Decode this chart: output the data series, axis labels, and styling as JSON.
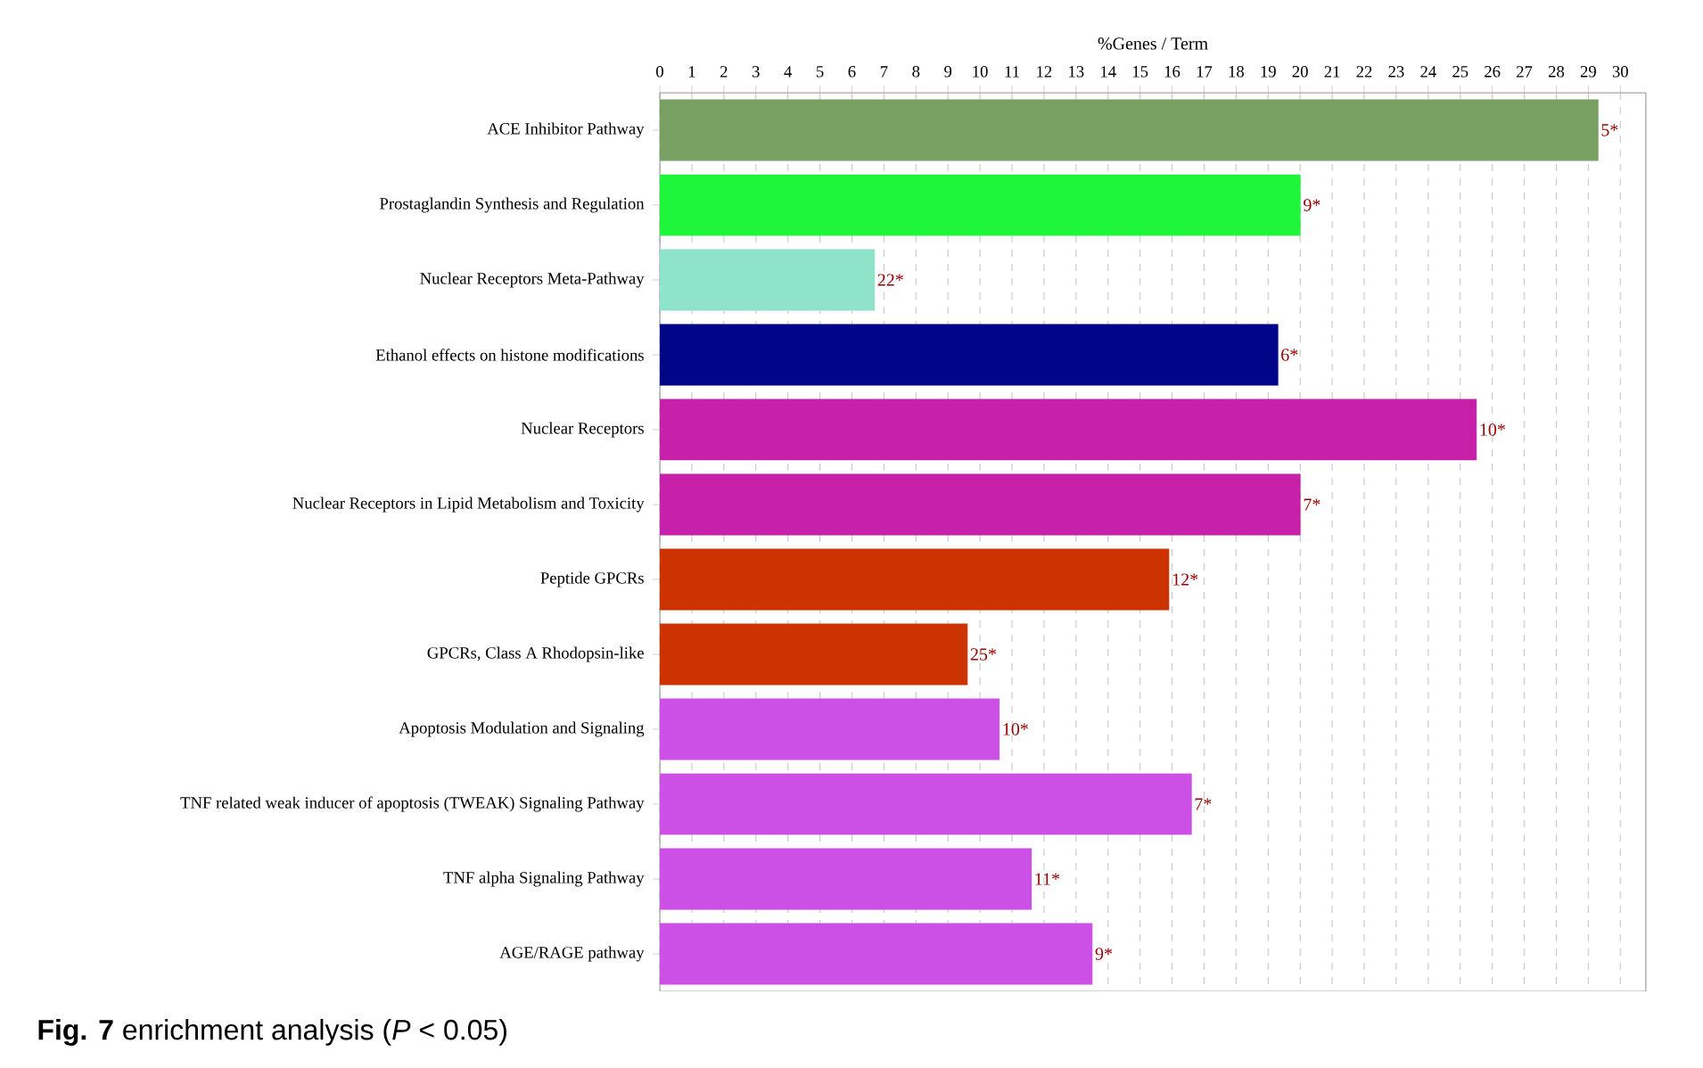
{
  "chart_data": {
    "type": "bar",
    "orientation": "horizontal",
    "xlabel": "%Genes / Term",
    "categories": [
      "ACE Inhibitor Pathway",
      "Prostaglandin Synthesis and Regulation",
      "Nuclear Receptors Meta-Pathway",
      "Ethanol effects on histone modifications",
      "Nuclear Receptors",
      "Nuclear Receptors in Lipid Metabolism and Toxicity",
      "Peptide GPCRs",
      "GPCRs, Class A Rhodopsin-like",
      "Apoptosis Modulation and Signaling",
      "TNF related weak inducer of apoptosis (TWEAK) Signaling Pathway",
      "TNF alpha Signaling Pathway",
      "AGE/RAGE pathway"
    ],
    "values": [
      29.3,
      20.0,
      6.7,
      19.3,
      25.5,
      20.0,
      15.9,
      9.6,
      10.6,
      16.6,
      11.6,
      13.5
    ],
    "colors": [
      "#77a062",
      "#1ff53b",
      "#8ee3c9",
      "#000687",
      "#c621a8",
      "#c621a8",
      "#cc3300",
      "#cc3300",
      "#cc4fe6",
      "#cc4fe6",
      "#cc4fe6",
      "#cc4fe6"
    ],
    "xlim": [
      0,
      30.8
    ],
    "xticks": [
      0,
      1,
      2,
      3,
      4,
      5,
      6,
      7,
      8,
      9,
      10,
      11,
      12,
      13,
      14,
      15,
      16,
      17,
      18,
      19,
      20,
      21,
      22,
      23,
      24,
      25,
      26,
      27,
      28,
      29,
      30
    ],
    "grid": "x",
    "annotations": [
      {
        "text": "5*",
        "x": 29.3,
        "y": "ACE Inhibitor Pathway"
      },
      {
        "text": "9*",
        "x": 20.0,
        "y": "Prostaglandin Synthesis and Regulation"
      },
      {
        "text": "22*",
        "x": 6.7,
        "y": "Nuclear Receptors Meta-Pathway"
      },
      {
        "text": "6*",
        "x": 19.3,
        "y": "Ethanol effects on histone modifications"
      },
      {
        "text": "10*",
        "x": 25.5,
        "y": "Nuclear Receptors"
      },
      {
        "text": "7*",
        "x": 20.0,
        "y": "Nuclear Receptors in Lipid Metabolism and Toxicity"
      },
      {
        "text": "12*",
        "x": 15.9,
        "y": "Peptide GPCRs"
      },
      {
        "text": "25*",
        "x": 9.6,
        "y": "GPCRs, Class A Rhodopsin-like"
      },
      {
        "text": "10*",
        "x": 10.6,
        "y": "Apoptosis Modulation and Signaling"
      },
      {
        "text": "7*",
        "x": 16.6,
        "y": "TNF related weak inducer of apoptosis (TWEAK) Signaling Pathway"
      },
      {
        "text": "11*",
        "x": 11.6,
        "y": "TNF alpha Signaling Pathway"
      },
      {
        "text": "9*",
        "x": 13.5,
        "y": "AGE/RAGE pathway"
      },
      "**Fig. 7** enrichment analysis (*P* < 0.05)"
    ]
  }
}
